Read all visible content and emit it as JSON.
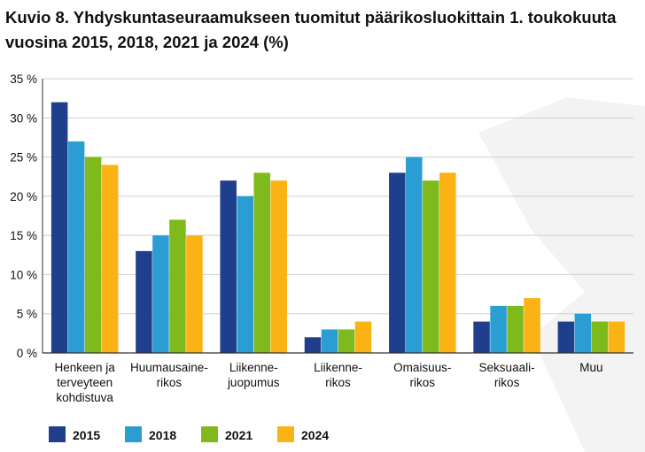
{
  "title": "Kuvio 8. Yhdyskuntaseuraamukseen tuomitut päärikosluokittain 1. toukokuuta vuosina 2015, 2018, 2021 ja 2024 (%)",
  "chart_data": {
    "type": "bar",
    "title": "Kuvio 8. Yhdyskuntaseuraamukseen tuomitut päärikosluokittain 1. toukokuuta vuosina 2015, 2018, 2021 ja 2024 (%)",
    "categories": [
      [
        "Henkeen ja",
        "terveyteen",
        "kohdistuva"
      ],
      [
        "Huumausaine-",
        "rikos"
      ],
      [
        "Liikenne-",
        "juopumus"
      ],
      [
        "Liikenne-",
        "rikos"
      ],
      [
        "Omaisuus-",
        "rikos"
      ],
      [
        "Seksuaali-",
        "rikos"
      ],
      [
        "Muu"
      ]
    ],
    "series": [
      {
        "name": "2015",
        "color": "#1f3e8c",
        "values": [
          32,
          13,
          22,
          2,
          23,
          4,
          4
        ]
      },
      {
        "name": "2018",
        "color": "#2a9dd2",
        "values": [
          27,
          15,
          20,
          3,
          25,
          6,
          5
        ]
      },
      {
        "name": "2021",
        "color": "#7fba1c",
        "values": [
          25,
          17,
          23,
          3,
          22,
          6,
          4
        ]
      },
      {
        "name": "2024",
        "color": "#fbb215",
        "values": [
          24,
          15,
          22,
          4,
          23,
          7,
          4
        ]
      }
    ],
    "ylim": [
      0,
      35
    ],
    "yticks": [
      0,
      5,
      10,
      15,
      20,
      25,
      30,
      35
    ],
    "ytick_labels": [
      "0 %",
      "5 %",
      "10 %",
      "15 %",
      "20 %",
      "25 %",
      "30 %",
      "35 %"
    ],
    "xlabel": "",
    "ylabel": "",
    "grid": true,
    "legend": "bottom-left"
  }
}
